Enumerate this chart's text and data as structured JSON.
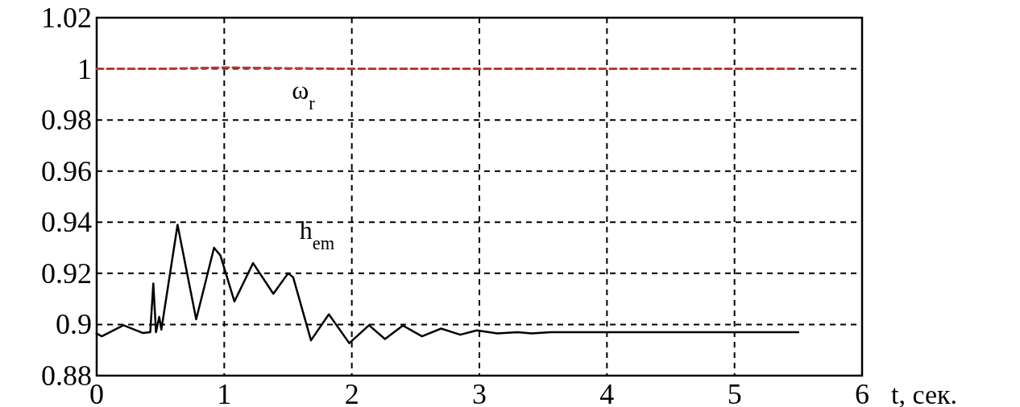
{
  "chart_data": {
    "type": "line",
    "xlabel": "t, сек.",
    "xlim": [
      0,
      6
    ],
    "xticks": [
      0,
      1,
      2,
      3,
      4,
      5,
      6
    ],
    "ylim": [
      0.88,
      1.02
    ],
    "yticks": [
      0.88,
      0.9,
      0.92,
      0.94,
      0.96,
      0.98,
      1,
      1.02
    ],
    "grid": true,
    "series": [
      {
        "name": "ω$_{r}$",
        "color": "#b83a3a",
        "line_style": "dashed",
        "x": [
          0,
          0.5,
          1,
          1.5,
          2,
          3,
          4,
          5,
          5.5
        ],
        "values": [
          1,
          1,
          1.0005,
          1.0002,
          1,
          1,
          1,
          1,
          1
        ]
      },
      {
        "name": "h$_{em}$",
        "color": "#000000",
        "line_style": "solid",
        "x": [
          0,
          0.04,
          0.21,
          0.36,
          0.42,
          0.444,
          0.465,
          0.49,
          0.507,
          0.634,
          0.78,
          0.92,
          0.97,
          1.08,
          1.226,
          1.385,
          1.5,
          1.54,
          1.68,
          1.82,
          1.98,
          2.135,
          2.26,
          2.4,
          2.55,
          2.7,
          2.85,
          2.98,
          3.14,
          3.3,
          3.41,
          3.56,
          4,
          5,
          5.5
        ],
        "values": [
          0.8965,
          0.8954,
          0.8997,
          0.8967,
          0.897,
          0.916,
          0.897,
          0.903,
          0.898,
          0.939,
          0.902,
          0.93,
          0.927,
          0.909,
          0.924,
          0.912,
          0.92,
          0.9185,
          0.8938,
          0.904,
          0.8927,
          0.8997,
          0.8943,
          0.8996,
          0.8954,
          0.8984,
          0.896,
          0.8977,
          0.8965,
          0.897,
          0.8965,
          0.897,
          0.897,
          0.897,
          0.897
        ]
      }
    ]
  }
}
